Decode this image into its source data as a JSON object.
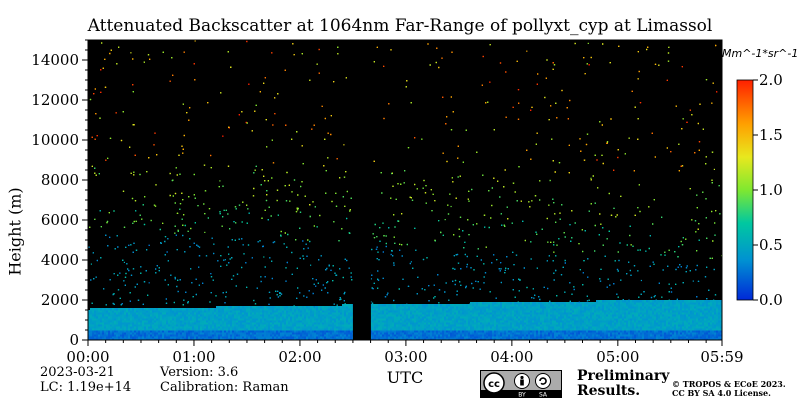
{
  "chart_data": {
    "type": "heatmap",
    "title": "Attenuated Backscatter at 1064nm Far-Range of pollyxt_cyp at Limassol",
    "xlabel": "UTC",
    "ylabel": "Height (m)",
    "x_ticks": [
      "00:00",
      "01:00",
      "02:00",
      "03:00",
      "04:00",
      "05:00",
      "05:59"
    ],
    "x_range_hours": [
      0,
      5.983
    ],
    "y_ticks": [
      0,
      2000,
      4000,
      6000,
      8000,
      10000,
      12000,
      14000
    ],
    "ylim": [
      0,
      15000
    ],
    "colorbar": {
      "label": "Mm^-1*sr^-1",
      "ticks": [
        "0.0",
        "0.5",
        "1.0",
        "1.5",
        "2.0"
      ],
      "range": [
        0,
        2.0
      ],
      "colors": [
        "#0028d8",
        "#0091d2",
        "#00c8a0",
        "#7fe830",
        "#e8e81e",
        "#ffa000",
        "#ff2000"
      ]
    },
    "data_gap_hours": [
      2.5,
      2.67
    ],
    "layers": [
      {
        "feature": "near-surface layer",
        "top_m_start": 1500,
        "top_m_end": 2000,
        "value": 0.4
      },
      {
        "feature": "aerosol layer",
        "top_m_start": 5500,
        "top_m_end": 4000,
        "value": 0.8
      },
      {
        "feature": "elevated aerosol",
        "top_m_start": 9000,
        "top_m_end": 8000,
        "value": 1.0
      }
    ]
  },
  "footer": {
    "date": "2023-03-21",
    "lc": "LC: 1.19e+14",
    "version": "Version: 3.6",
    "calibration": "Calibration: Raman",
    "preliminary_line1": "Preliminary",
    "preliminary_line2": "Results.",
    "copyright_line1": "© TROPOS & ECoE 2023.",
    "copyright_line2": "CC BY SA 4.0 License.",
    "license_badge": {
      "by": "BY",
      "sa": "SA"
    }
  },
  "colors": {
    "preliminary": "#e8363a",
    "background": "#000000",
    "gap": "#000000"
  }
}
